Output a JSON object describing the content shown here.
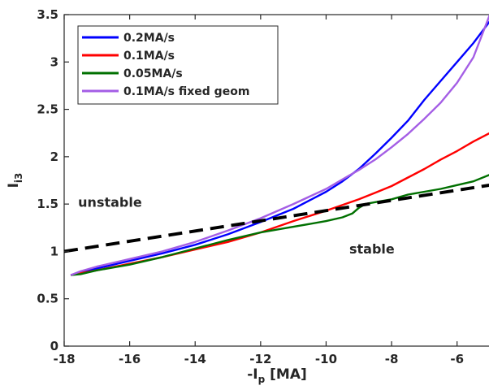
{
  "chart_data": {
    "type": "line",
    "title": "",
    "xlabel": {
      "main": "-I",
      "sub": "p",
      "unit": " [MA]"
    },
    "ylabel": {
      "main": "I",
      "sub": "i3"
    },
    "xlim": [
      -18,
      -5
    ],
    "ylim": [
      0,
      3.5
    ],
    "xticks": [
      -18,
      -16,
      -14,
      -12,
      -10,
      -8,
      -6
    ],
    "yticks": [
      0,
      0.5,
      1,
      1.5,
      2,
      2.5,
      3,
      3.5
    ],
    "xtick_labels": [
      "-18",
      "-16",
      "-14",
      "-12",
      "-10",
      "-8",
      "-6"
    ],
    "ytick_labels": [
      "0",
      "0.5",
      "1",
      "1.5",
      "2",
      "2.5",
      "3",
      "3.5"
    ],
    "grid": false,
    "legend_position": "top-left",
    "series": [
      {
        "name": "0.2MA/s",
        "color": "#0000ff",
        "x": [
          -17.8,
          -17.5,
          -17,
          -16,
          -15,
          -14,
          -13,
          -12,
          -11,
          -10,
          -9.5,
          -9,
          -8.5,
          -8,
          -7.5,
          -7,
          -6.5,
          -6,
          -5.5,
          -5
        ],
        "y": [
          0.75,
          0.78,
          0.82,
          0.9,
          0.98,
          1.07,
          1.18,
          1.31,
          1.45,
          1.63,
          1.74,
          1.87,
          2.03,
          2.2,
          2.38,
          2.6,
          2.8,
          3.0,
          3.2,
          3.43
        ]
      },
      {
        "name": "0.1MA/s",
        "color": "#ff0000",
        "x": [
          -17.8,
          -17.5,
          -17,
          -16,
          -15,
          -14,
          -13,
          -12,
          -11,
          -10,
          -9,
          -8.5,
          -8,
          -7.5,
          -7,
          -6.5,
          -6,
          -5.5,
          -5
        ],
        "y": [
          0.75,
          0.77,
          0.8,
          0.87,
          0.94,
          1.02,
          1.1,
          1.2,
          1.32,
          1.43,
          1.55,
          1.62,
          1.69,
          1.78,
          1.87,
          1.97,
          2.06,
          2.16,
          2.25
        ]
      },
      {
        "name": "0.05MA/s",
        "color": "#007000",
        "x": [
          -17.8,
          -17.5,
          -17,
          -16,
          -15,
          -14,
          -13,
          -12,
          -11,
          -10,
          -9.5,
          -9.2,
          -9,
          -8.8,
          -8.5,
          -8,
          -7.5,
          -7,
          -6.5,
          -6,
          -5.5,
          -5
        ],
        "y": [
          0.75,
          0.76,
          0.8,
          0.86,
          0.94,
          1.03,
          1.12,
          1.2,
          1.26,
          1.32,
          1.36,
          1.4,
          1.46,
          1.5,
          1.52,
          1.55,
          1.6,
          1.63,
          1.66,
          1.7,
          1.74,
          1.81
        ]
      },
      {
        "name": "0.1MA/s fixed geom",
        "color": "#a45ee5",
        "x": [
          -17.8,
          -17.5,
          -17,
          -16,
          -15,
          -14,
          -13,
          -12,
          -11,
          -10,
          -9.5,
          -9,
          -8.5,
          -8,
          -7.5,
          -7,
          -6.5,
          -6,
          -5.5,
          -5
        ],
        "y": [
          0.75,
          0.79,
          0.84,
          0.92,
          1.0,
          1.1,
          1.22,
          1.35,
          1.5,
          1.66,
          1.76,
          1.86,
          1.97,
          2.1,
          2.24,
          2.4,
          2.57,
          2.78,
          3.05,
          3.5
        ]
      }
    ],
    "reference_line": {
      "style": "dashed",
      "color": "#000000",
      "x": [
        -18,
        -5
      ],
      "y": [
        1.0,
        1.7
      ]
    },
    "annotations": [
      {
        "text": "unstable",
        "x": -16.6,
        "y": 1.47
      },
      {
        "text": "stable",
        "x": -8.6,
        "y": 0.98
      }
    ]
  }
}
